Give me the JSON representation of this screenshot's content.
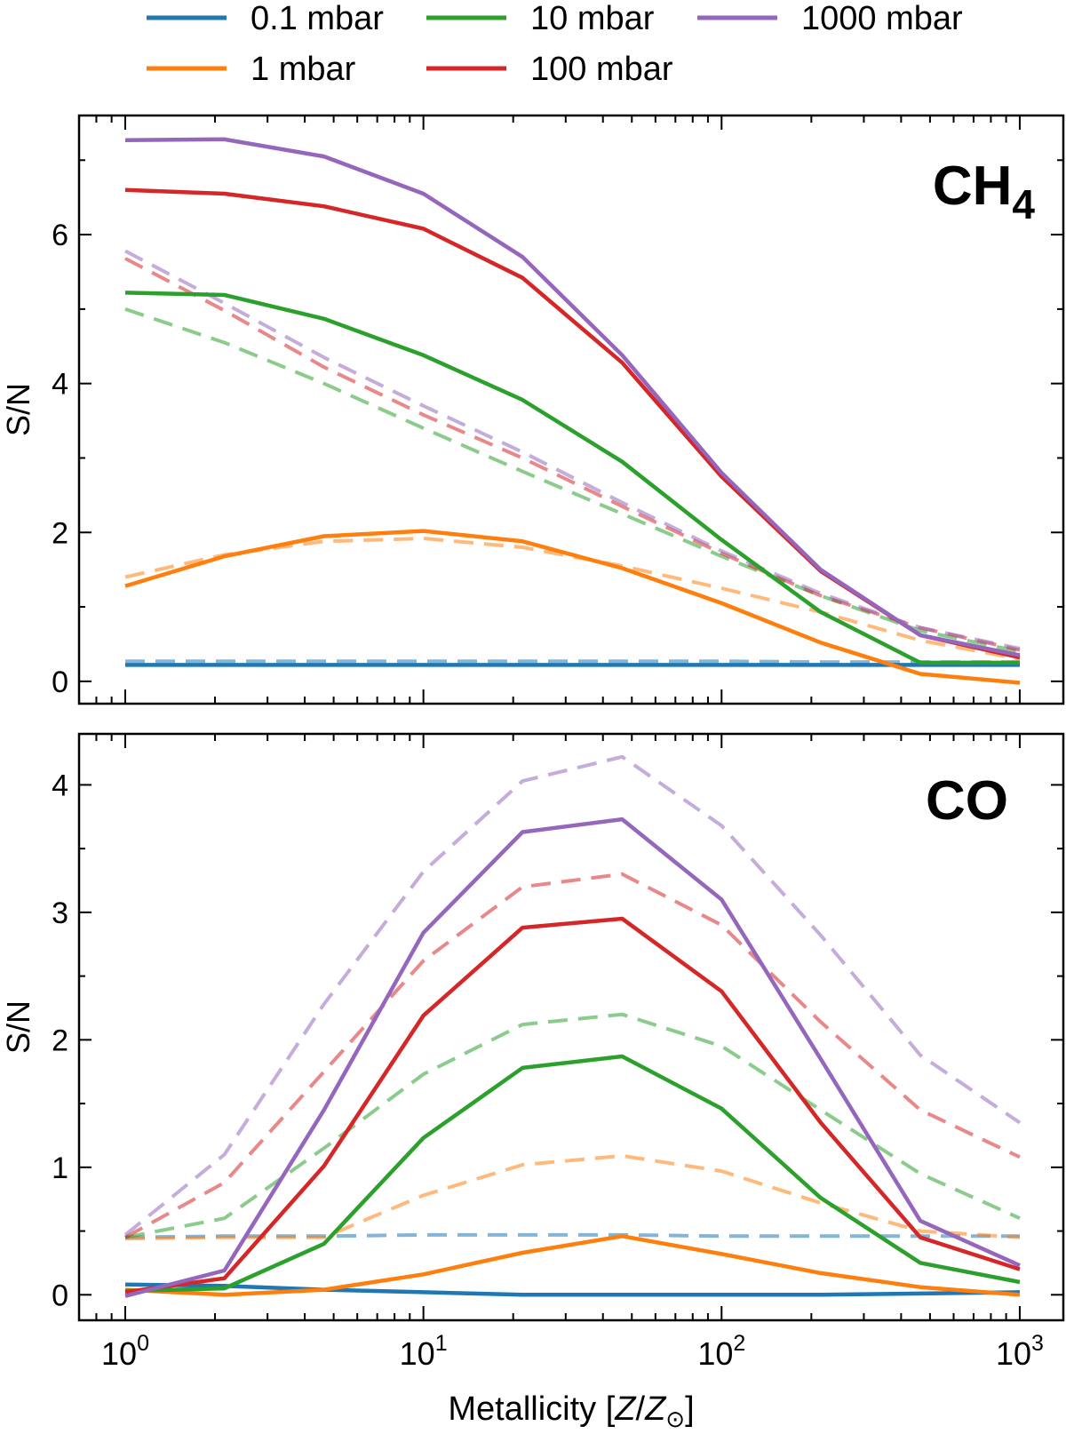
{
  "legend": {
    "entries": [
      {
        "label": "0.1 mbar",
        "color": "#1f77b4"
      },
      {
        "label": "10 mbar",
        "color": "#2ca02c"
      },
      {
        "label": "1000 mbar",
        "color": "#9467bd"
      },
      {
        "label": "1 mbar",
        "color": "#ff7f0e"
      },
      {
        "label": "100 mbar",
        "color": "#d62728"
      }
    ]
  },
  "xaxis": {
    "label_prefix": "Metallicity [",
    "label_Z": "Z",
    "label_slash": "/",
    "label_Zsun": "Z",
    "label_sun": "⊙",
    "label_suffix": "]",
    "scale": "log",
    "xlim": [
      0.7,
      1400
    ],
    "ticks": [
      {
        "base": "10",
        "exp": "0"
      },
      {
        "base": "10",
        "exp": "1"
      },
      {
        "base": "10",
        "exp": "2"
      },
      {
        "base": "10",
        "exp": "3"
      }
    ]
  },
  "chart_data": [
    {
      "type": "line",
      "panel": "top",
      "title_main": "CH",
      "title_sub": "4",
      "ylabel": "S/N",
      "ylim": [
        -0.3,
        7.6
      ],
      "yticks": [
        "0",
        "2",
        "4",
        "6"
      ],
      "x": [
        1,
        2.15,
        4.64,
        10,
        21.5,
        46.4,
        100,
        215,
        464,
        1000
      ],
      "series": [
        {
          "name": "0.1 mbar",
          "color": "#1f77b4",
          "style": "solid",
          "values": [
            0.22,
            0.22,
            0.22,
            0.22,
            0.22,
            0.22,
            0.22,
            0.22,
            0.22,
            0.22
          ]
        },
        {
          "name": "1 mbar",
          "color": "#ff7f0e",
          "style": "solid",
          "values": [
            1.28,
            1.68,
            1.95,
            2.02,
            1.88,
            1.52,
            1.05,
            0.52,
            0.1,
            -0.02
          ]
        },
        {
          "name": "10 mbar",
          "color": "#2ca02c",
          "style": "solid",
          "values": [
            5.22,
            5.19,
            4.87,
            4.38,
            3.78,
            2.95,
            1.9,
            0.93,
            0.25,
            0.25
          ]
        },
        {
          "name": "100 mbar",
          "color": "#d62728",
          "style": "solid",
          "values": [
            6.6,
            6.55,
            6.38,
            6.08,
            5.42,
            4.28,
            2.75,
            1.48,
            0.62,
            0.32
          ]
        },
        {
          "name": "1000 mbar",
          "color": "#9467bd",
          "style": "solid",
          "values": [
            7.27,
            7.28,
            7.05,
            6.55,
            5.7,
            4.38,
            2.8,
            1.5,
            0.62,
            0.35
          ]
        },
        {
          "name": "0.1 mbar",
          "color": "#1f77b4",
          "style": "dashed",
          "values": [
            0.27,
            0.27,
            0.27,
            0.27,
            0.27,
            0.27,
            0.27,
            0.26,
            0.26,
            0.26
          ]
        },
        {
          "name": "1 mbar",
          "color": "#ff7f0e",
          "style": "dashed",
          "values": [
            1.4,
            1.7,
            1.88,
            1.92,
            1.8,
            1.55,
            1.25,
            0.93,
            0.55,
            0.3
          ]
        },
        {
          "name": "10 mbar",
          "color": "#2ca02c",
          "style": "dashed",
          "values": [
            5.0,
            4.55,
            4.0,
            3.4,
            2.82,
            2.25,
            1.68,
            1.15,
            0.68,
            0.4
          ]
        },
        {
          "name": "100 mbar",
          "color": "#d62728",
          "style": "dashed",
          "values": [
            5.68,
            4.98,
            4.22,
            3.58,
            3.0,
            2.35,
            1.72,
            1.15,
            0.72,
            0.42
          ]
        },
        {
          "name": "1000 mbar",
          "color": "#9467bd",
          "style": "dashed",
          "values": [
            5.78,
            5.08,
            4.35,
            3.7,
            3.08,
            2.4,
            1.75,
            1.18,
            0.72,
            0.44
          ]
        }
      ]
    },
    {
      "type": "line",
      "panel": "bottom",
      "title_main": "CO",
      "title_sub": "",
      "ylabel": "S/N",
      "ylim": [
        -0.2,
        4.4
      ],
      "yticks": [
        "0",
        "1",
        "2",
        "3",
        "4"
      ],
      "x": [
        1,
        2.15,
        4.64,
        10,
        21.5,
        46.4,
        100,
        215,
        464,
        1000
      ],
      "series": [
        {
          "name": "0.1 mbar",
          "color": "#1f77b4",
          "style": "solid",
          "values": [
            0.08,
            0.07,
            0.04,
            0.02,
            0.0,
            0.0,
            0.0,
            0.0,
            0.01,
            0.02
          ]
        },
        {
          "name": "1 mbar",
          "color": "#ff7f0e",
          "style": "solid",
          "values": [
            0.04,
            0.0,
            0.04,
            0.16,
            0.33,
            0.46,
            0.32,
            0.17,
            0.06,
            0.0
          ]
        },
        {
          "name": "10 mbar",
          "color": "#2ca02c",
          "style": "solid",
          "values": [
            0.03,
            0.05,
            0.4,
            1.23,
            1.78,
            1.87,
            1.46,
            0.76,
            0.25,
            0.1
          ]
        },
        {
          "name": "100 mbar",
          "color": "#d62728",
          "style": "solid",
          "values": [
            0.02,
            0.13,
            1.01,
            2.19,
            2.88,
            2.95,
            2.38,
            1.35,
            0.45,
            0.2
          ]
        },
        {
          "name": "1000 mbar",
          "color": "#9467bd",
          "style": "solid",
          "values": [
            -0.01,
            0.19,
            1.45,
            2.84,
            3.63,
            3.73,
            3.1,
            1.85,
            0.58,
            0.23
          ]
        },
        {
          "name": "0.1 mbar",
          "color": "#1f77b4",
          "style": "dashed",
          "values": [
            0.45,
            0.46,
            0.46,
            0.47,
            0.47,
            0.47,
            0.46,
            0.46,
            0.46,
            0.46
          ]
        },
        {
          "name": "1 mbar",
          "color": "#ff7f0e",
          "style": "dashed",
          "values": [
            0.44,
            0.45,
            0.45,
            0.78,
            1.02,
            1.09,
            0.97,
            0.72,
            0.5,
            0.45
          ]
        },
        {
          "name": "10 mbar",
          "color": "#2ca02c",
          "style": "dashed",
          "values": [
            0.45,
            0.6,
            1.15,
            1.73,
            2.12,
            2.2,
            1.95,
            1.45,
            0.95,
            0.6
          ]
        },
        {
          "name": "100 mbar",
          "color": "#d62728",
          "style": "dashed",
          "values": [
            0.45,
            0.88,
            1.75,
            2.62,
            3.2,
            3.3,
            2.9,
            2.14,
            1.45,
            1.08
          ]
        },
        {
          "name": "1000 mbar",
          "color": "#9467bd",
          "style": "dashed",
          "values": [
            0.47,
            1.1,
            2.28,
            3.32,
            4.03,
            4.22,
            3.68,
            2.82,
            1.88,
            1.35
          ]
        }
      ]
    }
  ]
}
